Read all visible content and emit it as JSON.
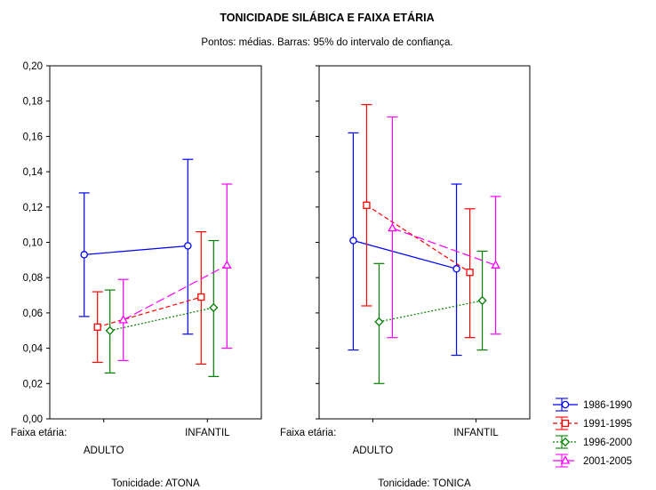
{
  "chart_data": {
    "type": "line",
    "title": "TONICIDADE SILÁBICA E FAIXA ETÁRIA",
    "subtitle": "Pontos: médias. Barras: 95% do intervalo de confiança.",
    "ylim": [
      0.0,
      0.2
    ],
    "yticks": [
      "0,00",
      "0,02",
      "0,04",
      "0,06",
      "0,08",
      "0,10",
      "0,12",
      "0,14",
      "0,16",
      "0,18",
      "0,20"
    ],
    "x_axis_name": "Faixa etária:",
    "categories": [
      "ADULTO",
      "INFANTIL"
    ],
    "grid": false,
    "legend_position": "bottom-right",
    "panels": [
      {
        "label": "Tonicidade: ATONA",
        "series": [
          {
            "name": "1986-1990",
            "color": "#0000ff",
            "marker": "circle",
            "dash": "solid",
            "mean": [
              0.093,
              0.098
            ],
            "lower": [
              0.058,
              0.048
            ],
            "upper": [
              0.128,
              0.147
            ]
          },
          {
            "name": "1991-1995",
            "color": "#ff0000",
            "marker": "square",
            "dash": "dashed",
            "mean": [
              0.052,
              0.069
            ],
            "lower": [
              0.032,
              0.031
            ],
            "upper": [
              0.072,
              0.106
            ]
          },
          {
            "name": "1996-2000",
            "color": "#008000",
            "marker": "diamond",
            "dash": "dotted",
            "mean": [
              0.05,
              0.063
            ],
            "lower": [
              0.026,
              0.024
            ],
            "upper": [
              0.073,
              0.101
            ]
          },
          {
            "name": "2001-2005",
            "color": "#ff00ff",
            "marker": "triangle",
            "dash": "longdash",
            "mean": [
              0.056,
              0.087
            ],
            "lower": [
              0.033,
              0.04
            ],
            "upper": [
              0.079,
              0.133
            ]
          }
        ]
      },
      {
        "label": "Tonicidade: TONICA",
        "series": [
          {
            "name": "1986-1990",
            "color": "#0000ff",
            "marker": "circle",
            "dash": "solid",
            "mean": [
              0.101,
              0.085
            ],
            "lower": [
              0.039,
              0.036
            ],
            "upper": [
              0.162,
              0.133
            ]
          },
          {
            "name": "1991-1995",
            "color": "#ff0000",
            "marker": "square",
            "dash": "dashed",
            "mean": [
              0.121,
              0.083
            ],
            "lower": [
              0.064,
              0.046
            ],
            "upper": [
              0.178,
              0.119
            ]
          },
          {
            "name": "1996-2000",
            "color": "#008000",
            "marker": "diamond",
            "dash": "dotted",
            "mean": [
              0.055,
              0.067
            ],
            "lower": [
              0.02,
              0.039
            ],
            "upper": [
              0.088,
              0.095
            ]
          },
          {
            "name": "2001-2005",
            "color": "#ff00ff",
            "marker": "triangle",
            "dash": "longdash",
            "mean": [
              0.108,
              0.087
            ],
            "lower": [
              0.046,
              0.048
            ],
            "upper": [
              0.171,
              0.126
            ]
          }
        ]
      }
    ]
  }
}
